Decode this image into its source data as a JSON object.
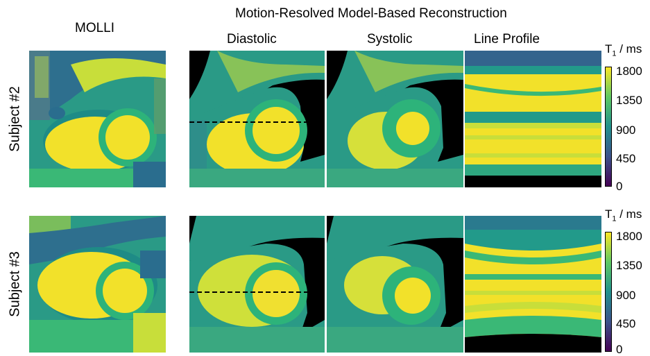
{
  "header": {
    "title": "Motion-Resolved Model-Based Reconstruction",
    "columns": [
      "MOLLI",
      "Diastolic",
      "Systolic",
      "Line Profile"
    ]
  },
  "rows": [
    {
      "label": "Subject #2"
    },
    {
      "label": "Subject #3"
    }
  ],
  "colorbar": {
    "title_main": "T",
    "title_sub": "1",
    "title_unit": " / ms",
    "ticks": [
      "1800",
      "1350",
      "900",
      "450",
      "0"
    ],
    "range": [
      0,
      1800
    ]
  },
  "palette": {
    "yellow": "#f2e12a",
    "yellow_green": "#c8de3a",
    "green": "#3ab876",
    "teal": "#229a8a",
    "blue_teal": "#2a7a8e",
    "blue": "#33648d",
    "purple": "#440154",
    "black": "#000000"
  }
}
